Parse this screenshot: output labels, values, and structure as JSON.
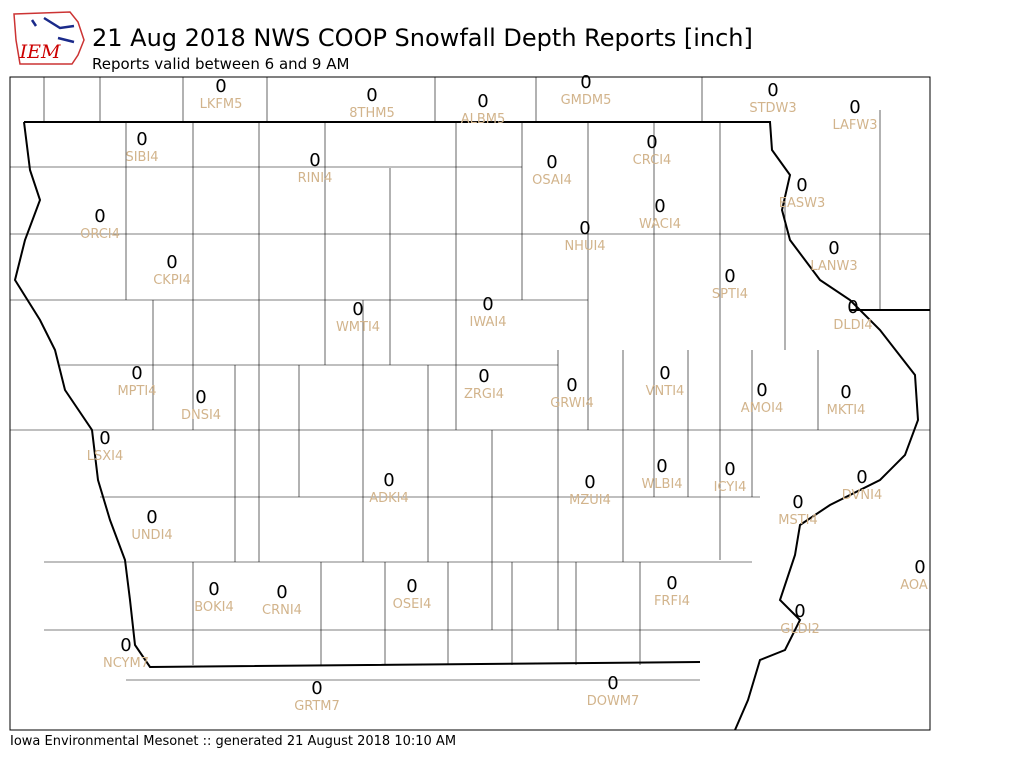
{
  "header": {
    "logo": "IEM",
    "title": "21 Aug 2018 NWS COOP Snowfall Depth Reports [inch]",
    "subtitle": "Reports valid between 6 and 9 AM"
  },
  "stations": [
    {
      "id": "LKFM5",
      "value": 0
    },
    {
      "id": "8THM5",
      "value": 0
    },
    {
      "id": "ALBM5",
      "value": 0
    },
    {
      "id": "GMDM5",
      "value": 0
    },
    {
      "id": "STDW3",
      "value": 0
    },
    {
      "id": "LAFW3",
      "value": 0
    },
    {
      "id": "SIBI4",
      "value": 0
    },
    {
      "id": "RINI4",
      "value": 0
    },
    {
      "id": "OSAI4",
      "value": 0
    },
    {
      "id": "CRCI4",
      "value": 0
    },
    {
      "id": "EASW3",
      "value": 0
    },
    {
      "id": "ORCI4",
      "value": 0
    },
    {
      "id": "NHUI4",
      "value": 0
    },
    {
      "id": "WACI4",
      "value": 0
    },
    {
      "id": "LANW3",
      "value": 0
    },
    {
      "id": "CKPI4",
      "value": 0
    },
    {
      "id": "SPTI4",
      "value": 0
    },
    {
      "id": "DLDI4",
      "value": 0
    },
    {
      "id": "WMTI4",
      "value": 0
    },
    {
      "id": "IWAI4",
      "value": 0
    },
    {
      "id": "MPTI4",
      "value": 0
    },
    {
      "id": "ZRGI4",
      "value": 0
    },
    {
      "id": "GRWI4",
      "value": 0
    },
    {
      "id": "VNTI4",
      "value": 0
    },
    {
      "id": "AMOI4",
      "value": 0
    },
    {
      "id": "MKTI4",
      "value": 0
    },
    {
      "id": "DNSI4",
      "value": 0
    },
    {
      "id": "LSXI4",
      "value": 0
    },
    {
      "id": "ADKI4",
      "value": 0
    },
    {
      "id": "MZUI4",
      "value": 0
    },
    {
      "id": "WLBI4",
      "value": 0
    },
    {
      "id": "ICYI4",
      "value": 0
    },
    {
      "id": "DVNI4",
      "value": 0
    },
    {
      "id": "MSTI4",
      "value": 0
    },
    {
      "id": "UNDI4",
      "value": 0
    },
    {
      "id": "BOKI4",
      "value": 0
    },
    {
      "id": "CRNI4",
      "value": 0
    },
    {
      "id": "OSEI4",
      "value": 0
    },
    {
      "id": "FRFI4",
      "value": 0
    },
    {
      "id": "AOA",
      "value": 0
    },
    {
      "id": "GLDI2",
      "value": 0
    },
    {
      "id": "NCYM7",
      "value": 0
    },
    {
      "id": "GRTM7",
      "value": 0
    },
    {
      "id": "DOWM7",
      "value": 0
    }
  ],
  "footer": "Iowa Environmental Mesonet :: generated 21 August 2018 10:10 AM"
}
